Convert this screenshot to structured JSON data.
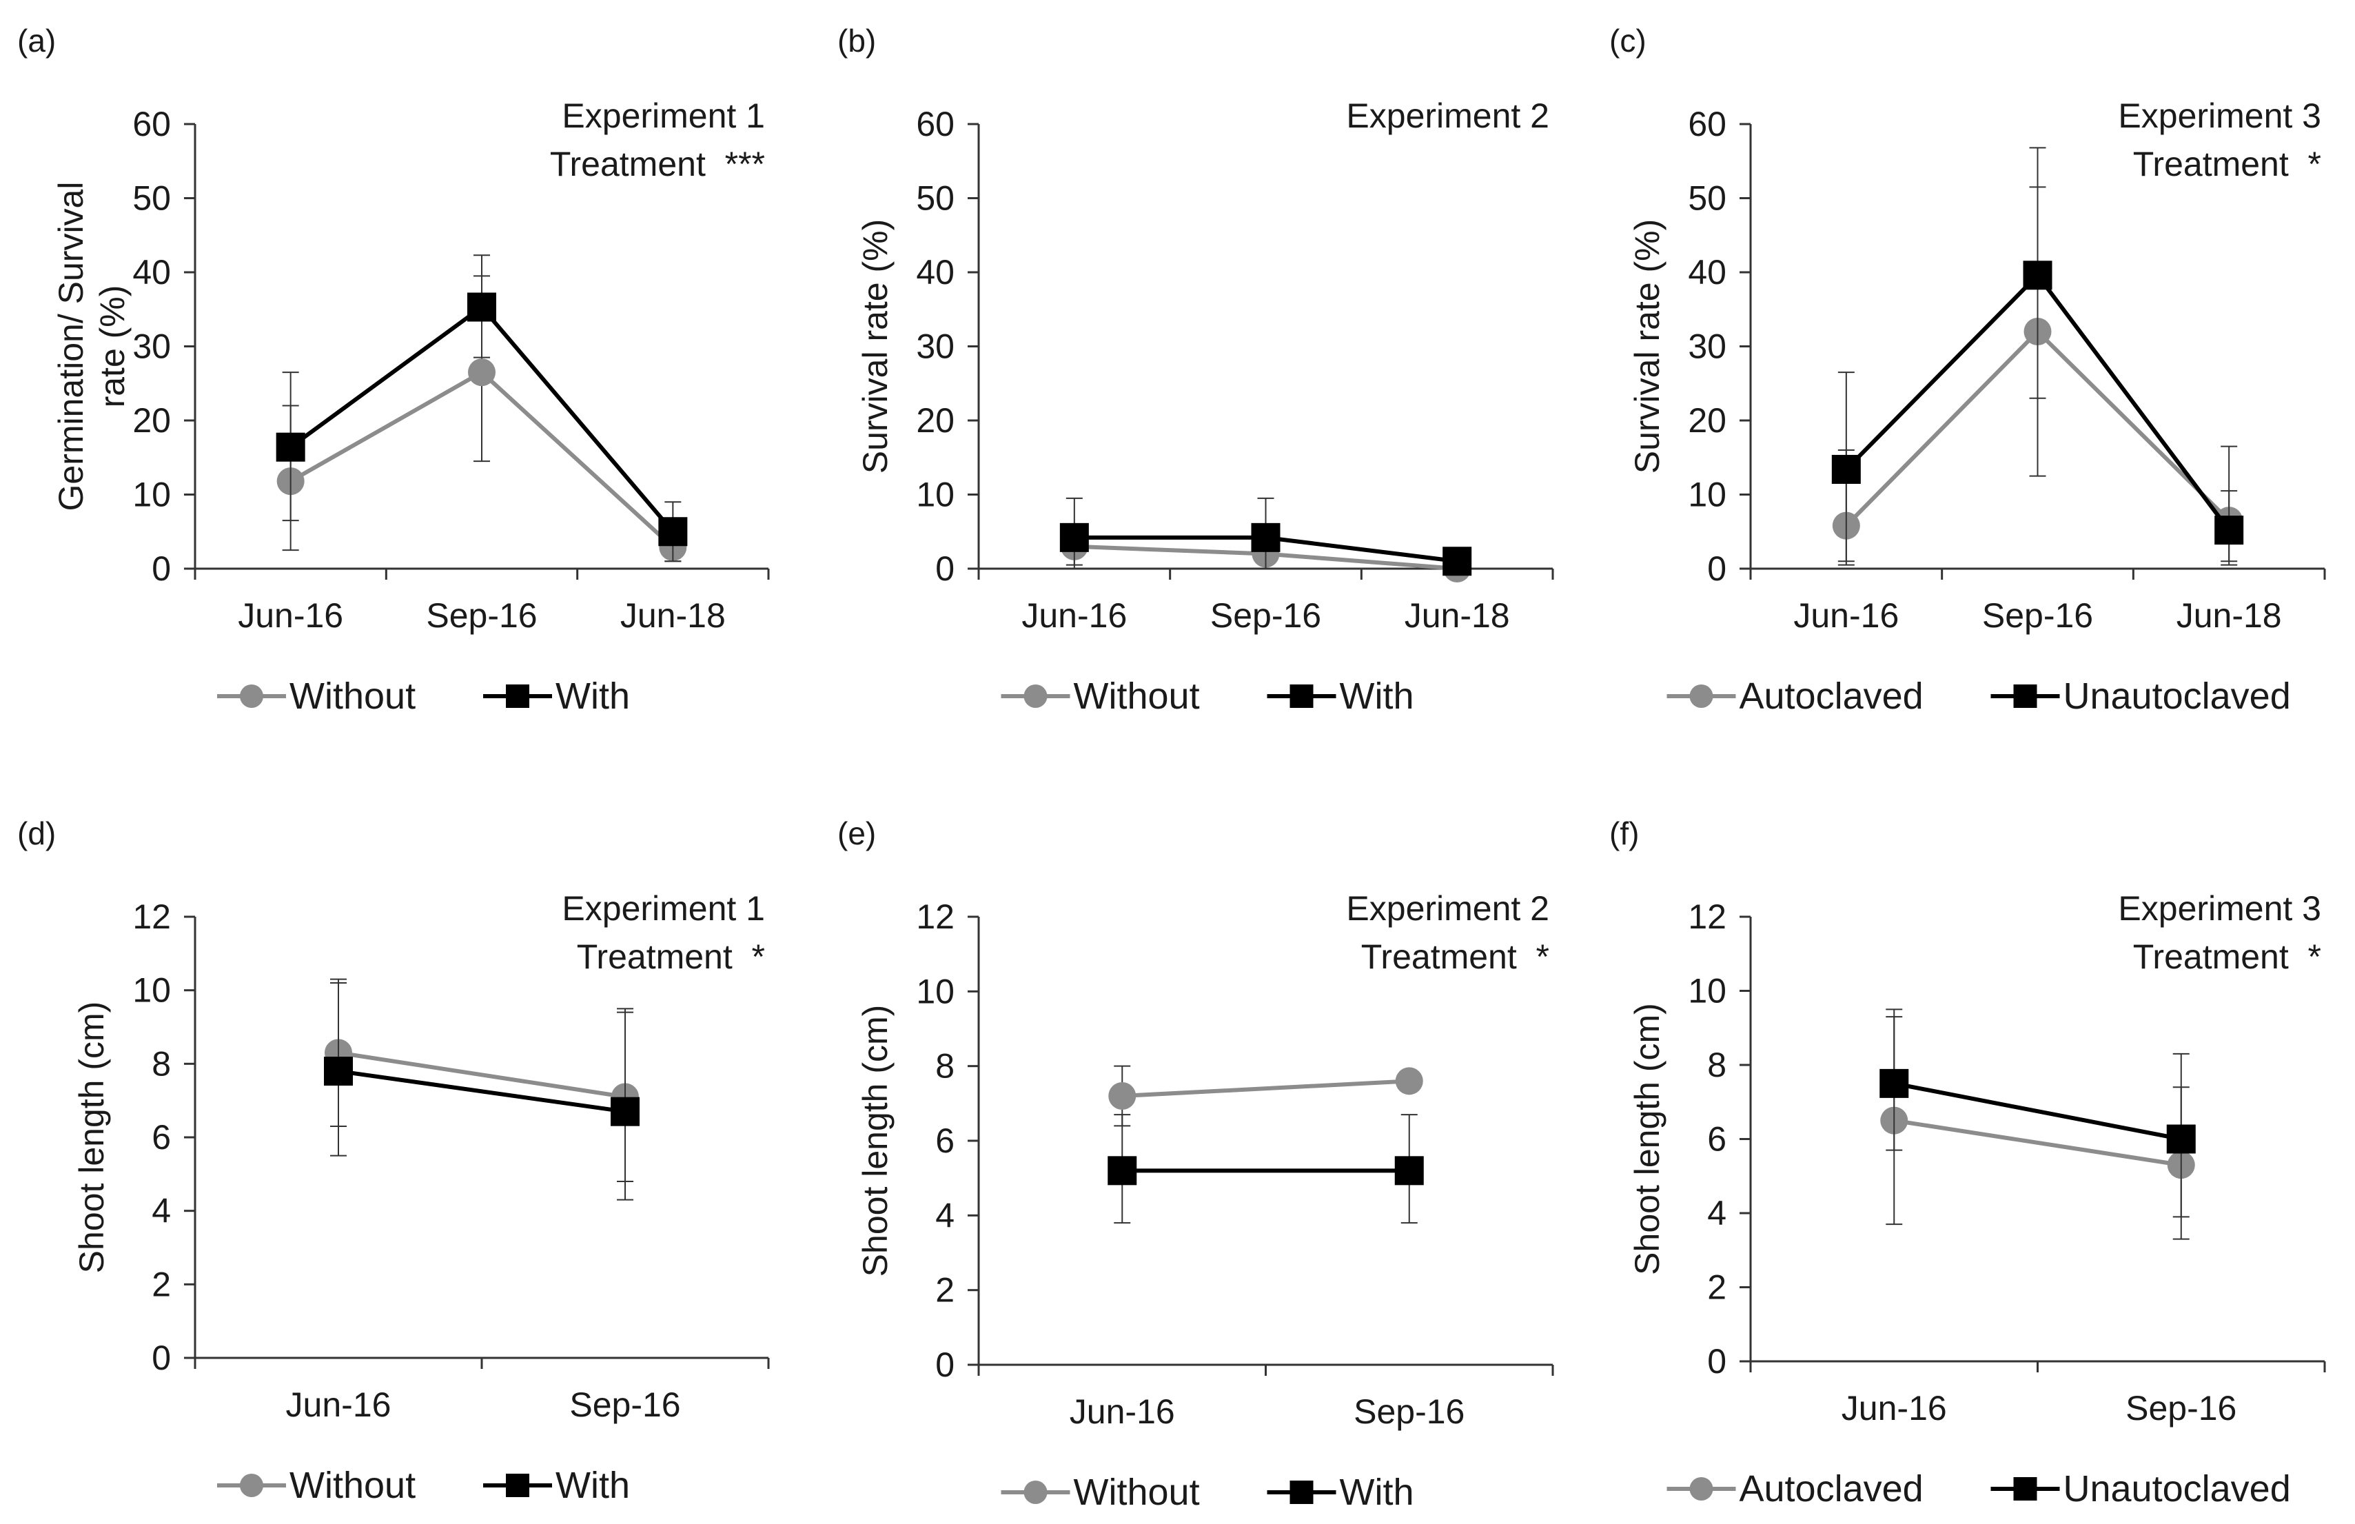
{
  "figure_title": "",
  "colors": {
    "gray": "#8c8c8c",
    "black": "#000000",
    "axis": "#333333",
    "text": "#1a1a1a"
  },
  "chart_data": [
    {
      "panel": "(a)",
      "type": "line",
      "annotation": [
        "Experiment 1",
        "Treatment  ***"
      ],
      "ylabel": [
        "Germination/ Survival",
        "rate (%)"
      ],
      "xlabel": "",
      "categories": [
        "Jun-16",
        "Sep-16",
        "Jun-18"
      ],
      "ylim": [
        0,
        60
      ],
      "yticks": [
        "0",
        "10",
        "20",
        "30",
        "40",
        "50",
        "60"
      ],
      "grid": false,
      "legend": "bottom",
      "series": [
        {
          "name": "Without",
          "marker": "circle",
          "color": "#8c8c8c",
          "values": [
            11.8,
            26.5,
            2.9
          ],
          "err_low": [
            2.5,
            14.5,
            1.0
          ],
          "err_high": [
            22.0,
            39.5,
            5.0
          ]
        },
        {
          "name": "With",
          "marker": "square",
          "color": "#000000",
          "values": [
            16.4,
            35.3,
            5.0
          ],
          "err_low": [
            6.5,
            28.5,
            1.0
          ],
          "err_high": [
            26.5,
            42.3,
            9.0
          ]
        }
      ]
    },
    {
      "panel": "(b)",
      "type": "line",
      "annotation": [
        "Experiment 2"
      ],
      "ylabel": [
        "Survival  rate (%)"
      ],
      "xlabel": "",
      "categories": [
        "Jun-16",
        "Sep-16",
        "Jun-18"
      ],
      "ylim": [
        0,
        60
      ],
      "yticks": [
        "0",
        "10",
        "20",
        "30",
        "40",
        "50",
        "60"
      ],
      "grid": false,
      "legend": "bottom",
      "series": [
        {
          "name": "Without",
          "marker": "circle",
          "color": "#8c8c8c",
          "values": [
            3.0,
            2.0,
            0.0
          ],
          "err_low": [
            0.5,
            0.0,
            0.0
          ],
          "err_high": [
            6.0,
            4.5,
            0.5
          ]
        },
        {
          "name": "With",
          "marker": "square",
          "color": "#000000",
          "values": [
            4.2,
            4.2,
            1.0
          ],
          "err_low": [
            0.0,
            0.0,
            0.0
          ],
          "err_high": [
            9.5,
            9.5,
            2.5
          ]
        }
      ]
    },
    {
      "panel": "(c)",
      "type": "line",
      "annotation": [
        "Experiment 3",
        "Treatment  *"
      ],
      "ylabel": [
        "Survival  rate (%)"
      ],
      "xlabel": "",
      "categories": [
        "Jun-16",
        "Sep-16",
        "Jun-18"
      ],
      "ylim": [
        0,
        60
      ],
      "yticks": [
        "0",
        "10",
        "20",
        "30",
        "40",
        "50",
        "60"
      ],
      "grid": false,
      "legend": "bottom",
      "series": [
        {
          "name": "Autoclaved",
          "marker": "circle",
          "color": "#8c8c8c",
          "values": [
            5.8,
            32.0,
            6.5
          ],
          "err_low": [
            0.5,
            12.5,
            1.0
          ],
          "err_high": [
            16.0,
            51.5,
            10.5
          ]
        },
        {
          "name": "Unautoclaved",
          "marker": "square",
          "color": "#000000",
          "values": [
            13.4,
            39.6,
            5.2
          ],
          "err_low": [
            1.0,
            23.0,
            0.5
          ],
          "err_high": [
            26.5,
            56.8,
            16.5
          ]
        }
      ]
    },
    {
      "panel": "(d)",
      "type": "line",
      "annotation": [
        "Experiment 1",
        "Treatment  *"
      ],
      "ylabel": [
        "Shoot length (cm)"
      ],
      "xlabel": "",
      "categories": [
        "Jun-16",
        "Sep-16"
      ],
      "ylim": [
        0,
        12
      ],
      "yticks": [
        "0",
        "2",
        "4",
        "6",
        "8",
        "10",
        "12"
      ],
      "grid": false,
      "legend": "bottom",
      "series": [
        {
          "name": "Without",
          "marker": "circle",
          "color": "#8c8c8c",
          "values": [
            8.3,
            7.1
          ],
          "err_low": [
            6.3,
            4.8
          ],
          "err_high": [
            10.3,
            9.4
          ]
        },
        {
          "name": "With",
          "marker": "square",
          "color": "#000000",
          "values": [
            7.8,
            6.7
          ],
          "err_low": [
            5.5,
            4.3
          ],
          "err_high": [
            10.2,
            9.5
          ]
        }
      ]
    },
    {
      "panel": "(e)",
      "type": "line",
      "annotation": [
        "Experiment 2",
        "Treatment  *"
      ],
      "ylabel": [
        "Shoot length (cm)"
      ],
      "xlabel": "",
      "categories": [
        "Jun-16",
        "Sep-16"
      ],
      "ylim": [
        0,
        12
      ],
      "yticks": [
        "0",
        "2",
        "4",
        "6",
        "8",
        "10",
        "12"
      ],
      "grid": false,
      "legend": "bottom",
      "series": [
        {
          "name": "Without",
          "marker": "circle",
          "color": "#8c8c8c",
          "values": [
            7.2,
            7.6
          ],
          "err_low": [
            6.4,
            7.6
          ],
          "err_high": [
            8.0,
            7.6
          ]
        },
        {
          "name": "With",
          "marker": "square",
          "color": "#000000",
          "values": [
            5.2,
            5.2
          ],
          "err_low": [
            3.8,
            3.8
          ],
          "err_high": [
            6.7,
            6.7
          ]
        }
      ]
    },
    {
      "panel": "(f)",
      "type": "line",
      "annotation": [
        "Experiment 3",
        "Treatment  *"
      ],
      "ylabel": [
        "Shoot length (cm)"
      ],
      "xlabel": "",
      "categories": [
        "Jun-16",
        "Sep-16"
      ],
      "ylim": [
        0,
        12
      ],
      "yticks": [
        "0",
        "2",
        "4",
        "6",
        "8",
        "10",
        "12"
      ],
      "grid": false,
      "legend": "bottom",
      "series": [
        {
          "name": "Autoclaved",
          "marker": "circle",
          "color": "#8c8c8c",
          "values": [
            6.5,
            5.3
          ],
          "err_low": [
            3.7,
            3.3
          ],
          "err_high": [
            9.3,
            7.4
          ]
        },
        {
          "name": "Unautoclaved",
          "marker": "square",
          "color": "#000000",
          "values": [
            7.5,
            6.0
          ],
          "err_low": [
            5.7,
            3.9
          ],
          "err_high": [
            9.5,
            8.3
          ]
        }
      ]
    }
  ]
}
